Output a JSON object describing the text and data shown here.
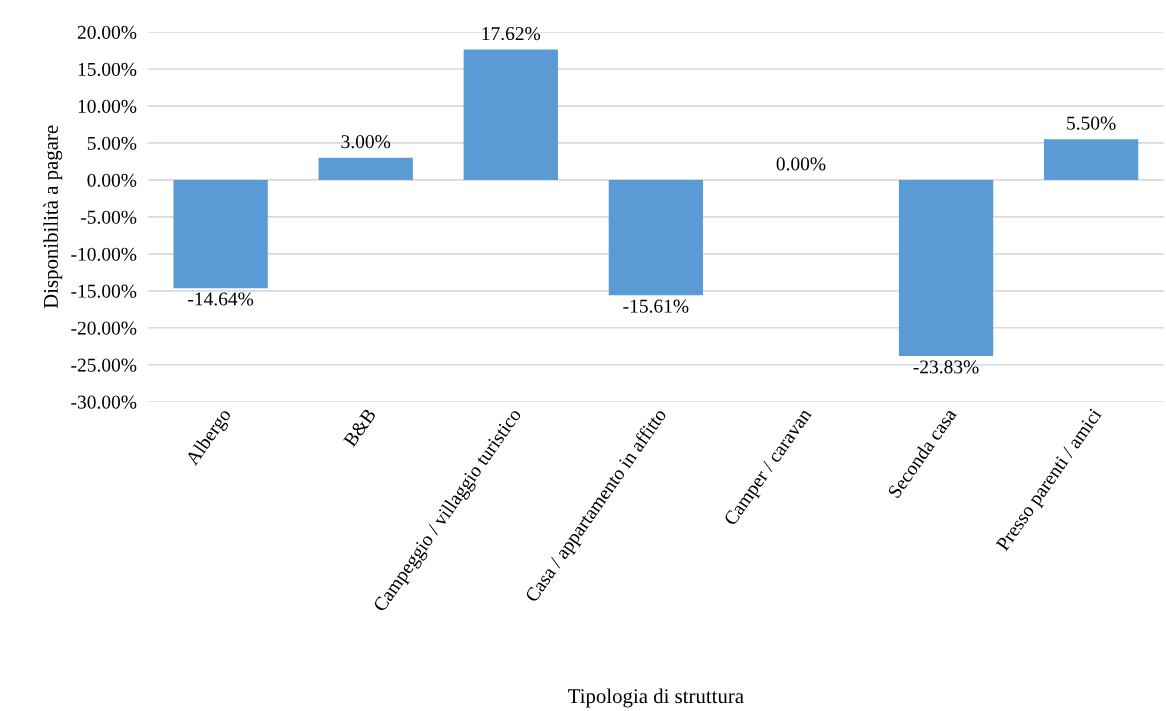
{
  "chart_data": {
    "type": "bar",
    "xlabel": "Tipologia di struttura",
    "ylabel": "Disponibilità a pagare",
    "categories": [
      "Albergo",
      "B&B",
      "Campeggio / villaggio turistico",
      "Casa / appartamento in affitto",
      "Camper / caravan",
      "Seconda casa",
      "Presso parenti / amici"
    ],
    "values": [
      -14.64,
      3.0,
      17.62,
      -15.61,
      0.0,
      -23.83,
      5.5
    ],
    "value_labels": [
      "-14.64%",
      "3.00%",
      "17.62%",
      "-15.61%",
      "0.00%",
      "-23.83%",
      "5.50%"
    ],
    "color": "#5b9bd5",
    "ylim": [
      -30,
      20
    ],
    "yticks": [
      {
        "value": -30,
        "label": "-30.00%"
      },
      {
        "value": -25,
        "label": "-25.00%"
      },
      {
        "value": -20,
        "label": "-20.00%"
      },
      {
        "value": -15,
        "label": "-15.00%"
      },
      {
        "value": -10,
        "label": "-10.00%"
      },
      {
        "value": -5,
        "label": "-5.00%"
      },
      {
        "value": 0,
        "label": "0.00%"
      },
      {
        "value": 5,
        "label": "5.00%"
      },
      {
        "value": 10,
        "label": "10.00%"
      },
      {
        "value": 15,
        "label": "15.00%"
      },
      {
        "value": 20,
        "label": "20.00%"
      }
    ],
    "grid": "y",
    "legend": false
  }
}
